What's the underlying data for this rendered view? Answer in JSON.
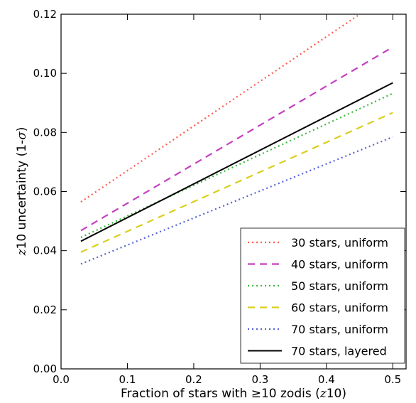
{
  "chart_data": {
    "type": "line",
    "xlabel": {
      "pre": "Fraction of stars with ",
      "ge": "≥",
      "mid": "10 zodis (",
      "z": "z",
      "post": "10)"
    },
    "ylabel": {
      "z": "z",
      "post": "10 uncertainty (1-",
      "sigma": "σ",
      "end": ")"
    },
    "xlim": [
      0.0,
      0.52
    ],
    "ylim": [
      0.0,
      0.12
    ],
    "xticks": [
      "0.0",
      "0.1",
      "0.2",
      "0.3",
      "0.4",
      "0.5"
    ],
    "yticks": [
      "0.00",
      "0.02",
      "0.04",
      "0.06",
      "0.08",
      "0.10",
      "0.12"
    ],
    "grid": false,
    "legend_position": "lower-right",
    "series": [
      {
        "name": "30 stars, uniform",
        "color": "#ff5a4a",
        "style": "dotted",
        "x": [
          0.03,
          0.5
        ],
        "y": [
          0.0565,
          0.1275
        ]
      },
      {
        "name": "40 stars, uniform",
        "color": "#c53fc1",
        "style": "dashed",
        "x": [
          0.03,
          0.5
        ],
        "y": [
          0.0468,
          0.1089
        ]
      },
      {
        "name": "50 stars, uniform",
        "color": "#3cb83c",
        "style": "dotted",
        "x": [
          0.03,
          0.5
        ],
        "y": [
          0.0445,
          0.0932
        ]
      },
      {
        "name": "60 stars, uniform",
        "color": "#d9cf1e",
        "style": "dashed",
        "x": [
          0.03,
          0.5
        ],
        "y": [
          0.0395,
          0.0867
        ]
      },
      {
        "name": "70 stars, uniform",
        "color": "#5562d6",
        "style": "dotted",
        "x": [
          0.03,
          0.5
        ],
        "y": [
          0.0355,
          0.0785
        ]
      },
      {
        "name": "70 stars, layered",
        "color": "#000000",
        "style": "solid",
        "x": [
          0.03,
          0.5
        ],
        "y": [
          0.0432,
          0.0968
        ]
      }
    ]
  }
}
